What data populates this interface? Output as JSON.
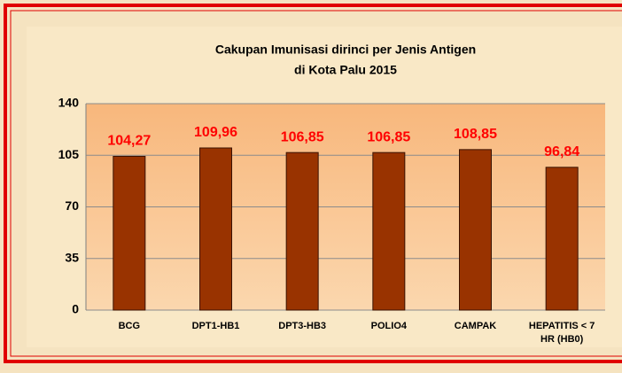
{
  "chart_data": {
    "type": "bar",
    "title": [
      "Cakupan Imunisasi dirinci per Jenis Antigen",
      "di Kota Palu 2015"
    ],
    "categories": [
      "BCG",
      "DPT1-HB1",
      "DPT3-HB3",
      "POLIO4",
      "CAMPAK",
      "HEPATITIS < 7 HR (HB0)"
    ],
    "values": [
      104.27,
      109.96,
      106.85,
      106.85,
      108.85,
      96.84
    ],
    "value_labels": [
      "104,27",
      "109,96",
      "106,85",
      "106,85",
      "108,85",
      "96,84"
    ],
    "color": "#993300",
    "label_color": "#ff0000",
    "ylim": [
      0,
      140
    ],
    "yticks": [
      0,
      35,
      70,
      105,
      140
    ],
    "grid": true
  }
}
